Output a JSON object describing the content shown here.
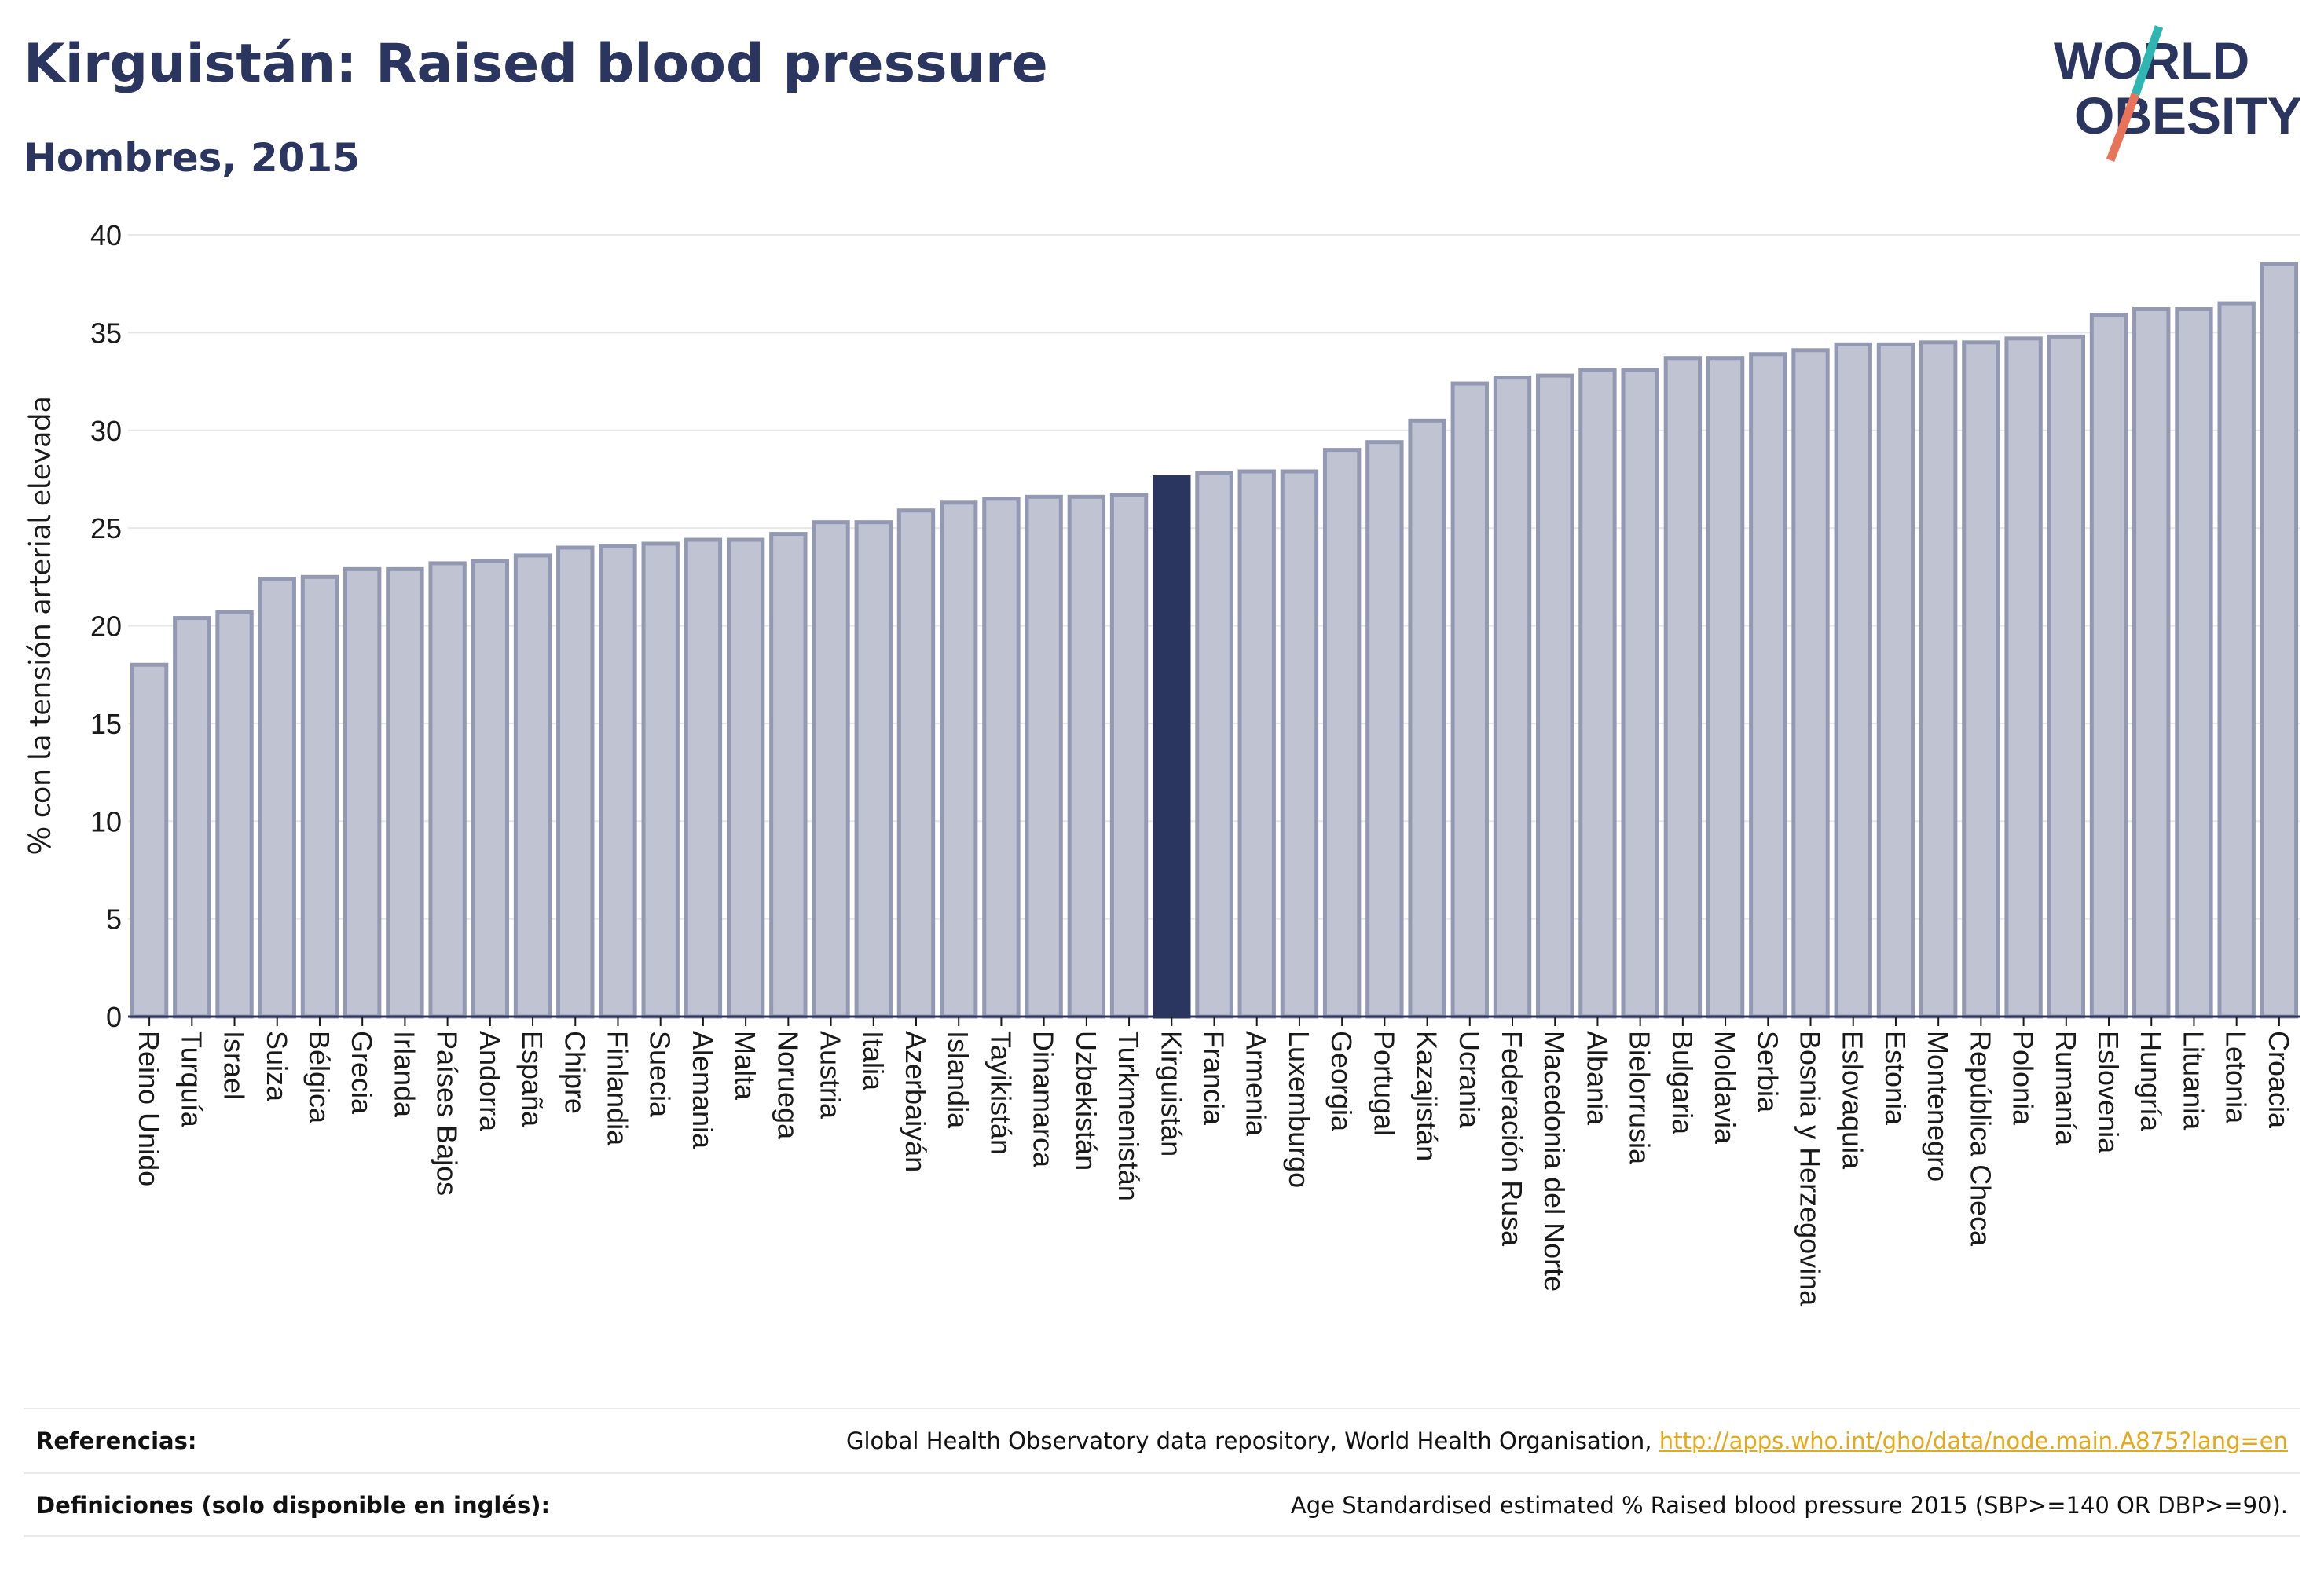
{
  "header": {
    "title": "Kirguistán: Raised blood pressure",
    "subtitle": "Hombres, 2015"
  },
  "logo": {
    "line1": "WORLD",
    "line2": "OBESITY"
  },
  "colors": {
    "bar_fill": "#bfc3d2",
    "bar_stroke": "#9399b3",
    "highlight": "#2a3560",
    "grid": "#e6e7ec",
    "logo_teal": "#2fb5b2",
    "logo_coral": "#e8735b",
    "link": "#e6a817"
  },
  "chart_data": {
    "type": "bar",
    "ylabel": "% con la tensión arterial elevada",
    "xlabel": "",
    "ylim": [
      0,
      40
    ],
    "yticks": [
      0,
      5,
      10,
      15,
      20,
      25,
      30,
      35,
      40
    ],
    "grid": true,
    "highlight": "Kirguistán",
    "categories": [
      "Reino Unido",
      "Turquía",
      "Israel",
      "Suiza",
      "Bélgica",
      "Grecia",
      "Irlanda",
      "Países Bajos",
      "Andorra",
      "España",
      "Chipre",
      "Finlandia",
      "Suecia",
      "Alemania",
      "Malta",
      "Noruega",
      "Austria",
      "Italia",
      "Azerbaiyán",
      "Islandia",
      "Tayikistán",
      "Dinamarca",
      "Uzbekistán",
      "Turkmenistán",
      "Kirguistán",
      "Francia",
      "Armenia",
      "Luxemburgo",
      "Georgia",
      "Portugal",
      "Kazajistán",
      "Ucrania",
      "Federación Rusa",
      "Macedonia del Norte",
      "Albania",
      "Bielorrusia",
      "Bulgaria",
      "Moldavia",
      "Serbia",
      "Bosnia y Herzegovina",
      "Eslovaquia",
      "Estonia",
      "Montenegro",
      "República Checa",
      "Polonia",
      "Rumanía",
      "Eslovenia",
      "Hungría",
      "Lituania",
      "Letonia",
      "Croacia"
    ],
    "values": [
      18.0,
      20.4,
      20.7,
      22.4,
      22.5,
      22.9,
      22.9,
      23.2,
      23.3,
      23.6,
      24.0,
      24.1,
      24.2,
      24.4,
      24.4,
      24.7,
      25.3,
      25.3,
      25.9,
      26.3,
      26.5,
      26.6,
      26.6,
      26.7,
      27.6,
      27.8,
      27.9,
      27.9,
      29.0,
      29.4,
      30.5,
      32.4,
      32.7,
      32.8,
      33.1,
      33.1,
      33.7,
      33.7,
      33.9,
      34.1,
      34.4,
      34.4,
      34.5,
      34.5,
      34.7,
      34.8,
      35.9,
      36.2,
      36.2,
      36.5,
      38.5
    ]
  },
  "footer": {
    "references_label": "Referencias:",
    "references_text": "Global Health Observatory data repository, World Health Organisation, ",
    "references_link": "http://apps.who.int/gho/data/node.main.A875?lang=en",
    "definitions_label": "Definiciones (solo disponible en inglés):",
    "definitions_text": "Age Standardised estimated % Raised blood pressure 2015 (SBP>=140 OR DBP>=90)."
  }
}
